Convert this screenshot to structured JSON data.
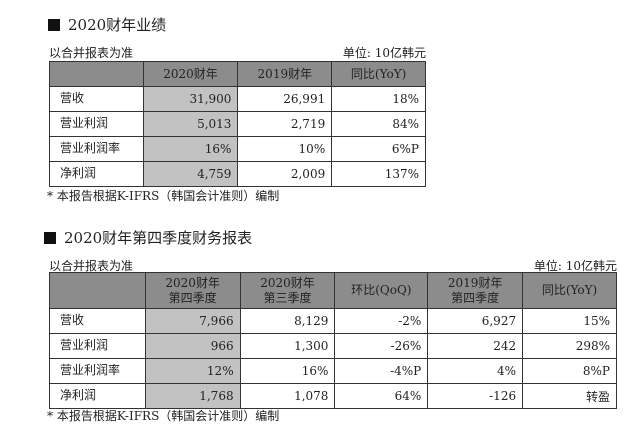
{
  "section1": {
    "title": "2020财年业绩",
    "basis": "以合并报表为准",
    "unit": "单位: 10亿韩元",
    "headers": [
      "",
      "2020财年",
      "2019财年",
      "同比(YoY)"
    ],
    "rows": [
      {
        "label": "营收",
        "values": [
          "31,900",
          "26,991",
          "18%"
        ]
      },
      {
        "label": "营业利润",
        "values": [
          "5,013",
          "2,719",
          "84%"
        ]
      },
      {
        "label": "营业利润率",
        "values": [
          "16%",
          "10%",
          "6%P"
        ]
      },
      {
        "label": "净利润",
        "values": [
          "4,759",
          "2,009",
          "137%"
        ]
      }
    ],
    "footnote": "* 本报告根据K-IFRS（韩国会计准则）编制"
  },
  "section2": {
    "title": "2020财年第四季度财务报表",
    "basis": "以合并报表为准",
    "unit": "单位: 10亿韩元",
    "headers": [
      {
        "l1": "",
        "l2": ""
      },
      {
        "l1": "2020财年",
        "l2": "第四季度"
      },
      {
        "l1": "2020财年",
        "l2": "第三季度"
      },
      {
        "l1": "环比(QoQ)",
        "l2": ""
      },
      {
        "l1": "2019财年",
        "l2": "第四季度"
      },
      {
        "l1": "同比(YoY)",
        "l2": ""
      }
    ],
    "rows": [
      {
        "label": "营收",
        "values": [
          "7,966",
          "8,129",
          "-2%",
          "6,927",
          "15%"
        ]
      },
      {
        "label": "营业利润",
        "values": [
          "966",
          "1,300",
          "-26%",
          "242",
          "298%"
        ]
      },
      {
        "label": "营业利润率",
        "values": [
          "12%",
          "16%",
          "-4%P",
          "4%",
          "8%P"
        ]
      },
      {
        "label": "净利润",
        "values": [
          "1,768",
          "1,078",
          "64%",
          "-126",
          "转盈"
        ]
      }
    ],
    "footnote": "* 本报告根据K-IFRS（韩国会计准则）编制"
  }
}
